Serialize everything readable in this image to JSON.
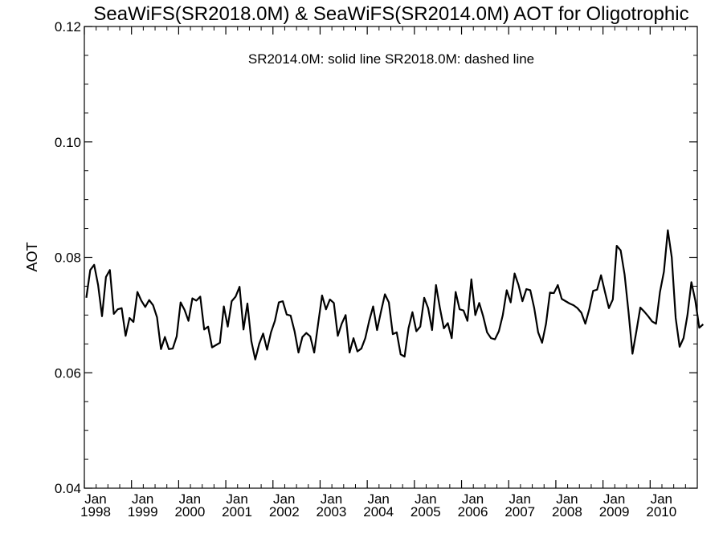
{
  "chart_data": {
    "type": "line",
    "title": "SeaWiFS(SR2018.0M) & SeaWiFS(SR2014.0M)  AOT for Oligotrophic",
    "ylabel": "AOT",
    "xlabel": "",
    "annotation": "SR2014.0M: solid line   SR2018.0M: dashed line",
    "ylim": [
      0.04,
      0.12
    ],
    "xlim": [
      "1998-01",
      "2010-12"
    ],
    "grid": false,
    "line_color": "#000000",
    "y_ticks": [
      {
        "value": 0.04,
        "label": "0.04"
      },
      {
        "value": 0.06,
        "label": "0.06"
      },
      {
        "value": 0.08,
        "label": "0.08"
      },
      {
        "value": 0.1,
        "label": "0.10"
      },
      {
        "value": 0.12,
        "label": "0.12"
      }
    ],
    "x_ticks": [
      {
        "date": "1998-01",
        "month": "Jan",
        "year": "1998"
      },
      {
        "date": "1999-01",
        "month": "Jan",
        "year": "1999"
      },
      {
        "date": "2000-01",
        "month": "Jan",
        "year": "2000"
      },
      {
        "date": "2001-01",
        "month": "Jan",
        "year": "2001"
      },
      {
        "date": "2002-01",
        "month": "Jan",
        "year": "2002"
      },
      {
        "date": "2003-01",
        "month": "Jan",
        "year": "2003"
      },
      {
        "date": "2004-01",
        "month": "Jan",
        "year": "2004"
      },
      {
        "date": "2005-01",
        "month": "Jan",
        "year": "2005"
      },
      {
        "date": "2006-01",
        "month": "Jan",
        "year": "2006"
      },
      {
        "date": "2007-01",
        "month": "Jan",
        "year": "2007"
      },
      {
        "date": "2008-01",
        "month": "Jan",
        "year": "2008"
      },
      {
        "date": "2009-01",
        "month": "Jan",
        "year": "2009"
      },
      {
        "date": "2010-01",
        "month": "Jan",
        "year": "2010"
      }
    ],
    "series": [
      {
        "name": "SR2014.0M",
        "start": "1998-01",
        "values": [
          0.073,
          0.0778,
          0.0787,
          0.0752,
          0.0698,
          0.0766,
          0.0778,
          0.0702,
          0.071,
          0.0712,
          0.0664,
          0.0695,
          0.0688,
          0.074,
          0.0725,
          0.0714,
          0.0726,
          0.0717,
          0.0696,
          0.0641,
          0.0662,
          0.0641,
          0.0642,
          0.0663,
          0.0722,
          0.0709,
          0.069,
          0.0729,
          0.0725,
          0.0732,
          0.0675,
          0.068,
          0.0644,
          0.0648,
          0.0652,
          0.0715,
          0.068,
          0.0724,
          0.0732,
          0.0749,
          0.0675,
          0.072,
          0.0655,
          0.0623,
          0.065,
          0.0668,
          0.064,
          0.067,
          0.069,
          0.0722,
          0.0724,
          0.0701,
          0.0699,
          0.0672,
          0.0635,
          0.0662,
          0.0669,
          0.0663,
          0.0635,
          0.0685,
          0.0734,
          0.071,
          0.0727,
          0.0721,
          0.0664,
          0.0685,
          0.07,
          0.0635,
          0.066,
          0.0637,
          0.0642,
          0.066,
          0.069,
          0.0715,
          0.0674,
          0.0706,
          0.0736,
          0.0722,
          0.0667,
          0.067,
          0.0632,
          0.0628,
          0.0677,
          0.0705,
          0.0672,
          0.068,
          0.073,
          0.0712,
          0.0674,
          0.0752,
          0.0712,
          0.0677,
          0.0686,
          0.066,
          0.074,
          0.071,
          0.0708,
          0.069,
          0.0762,
          0.07,
          0.0721,
          0.0698,
          0.067,
          0.066,
          0.0658,
          0.0672,
          0.07,
          0.0743,
          0.0722,
          0.0772,
          0.0752,
          0.0724,
          0.0745,
          0.0743,
          0.0712,
          0.067,
          0.0652,
          0.0685,
          0.0739,
          0.0738,
          0.0752,
          0.0728,
          0.0724,
          0.072,
          0.0717,
          0.0712,
          0.0704,
          0.0685,
          0.071,
          0.0742,
          0.0744,
          0.0769,
          0.074,
          0.0712,
          0.0727,
          0.082,
          0.0812,
          0.077,
          0.0705,
          0.0633,
          0.0672,
          0.0713,
          0.0706,
          0.0698,
          0.0689,
          0.0685,
          0.074,
          0.0775,
          0.0847,
          0.08,
          0.0695,
          0.0645,
          0.066,
          0.07,
          0.0757,
          0.0725,
          0.0678,
          0.0684
        ]
      }
    ]
  }
}
